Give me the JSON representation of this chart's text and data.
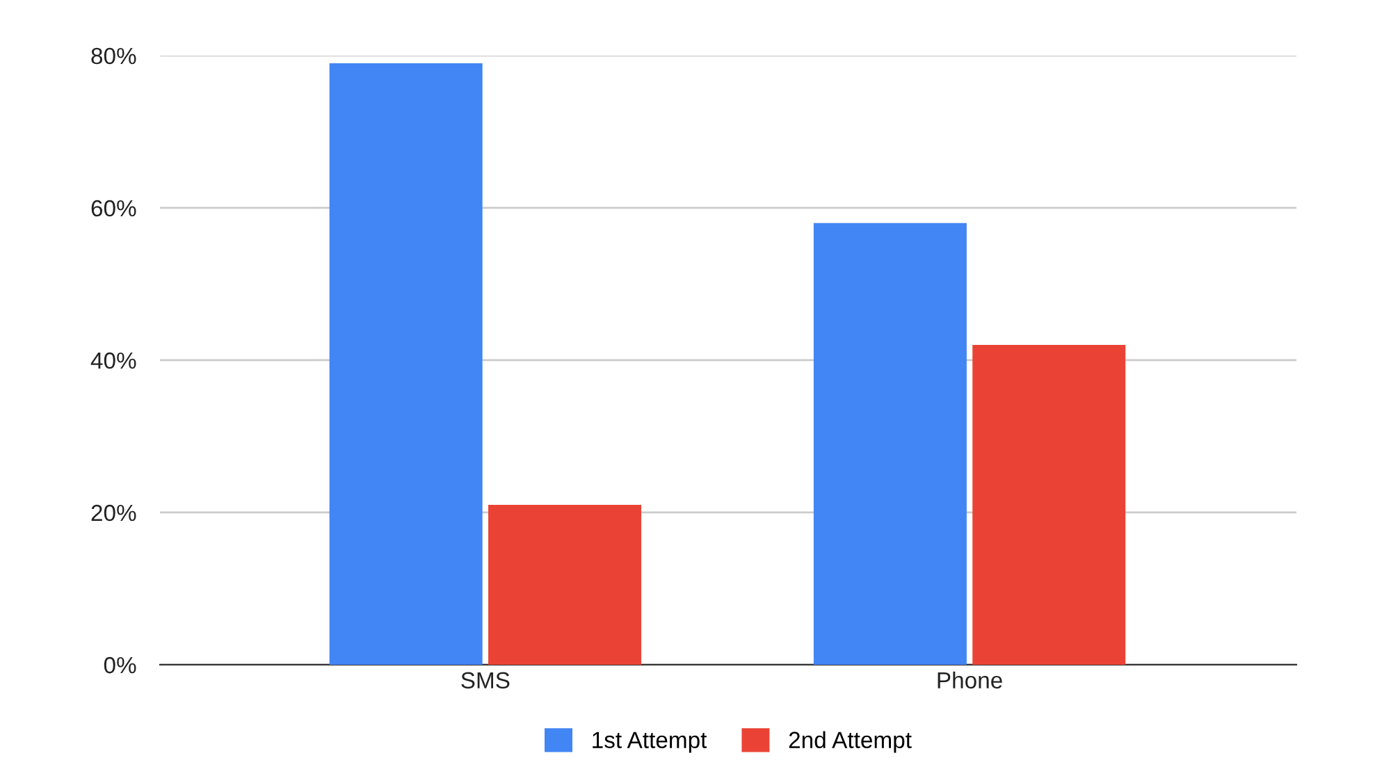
{
  "chart_data": {
    "type": "bar",
    "categories": [
      "SMS",
      "Phone"
    ],
    "series": [
      {
        "name": "1st Attempt",
        "color": "#4285f4",
        "values": [
          79,
          58
        ]
      },
      {
        "name": "2nd Attempt",
        "color": "#ea4335",
        "values": [
          21,
          42
        ]
      }
    ],
    "ylim": [
      0,
      80
    ],
    "yticks": [
      {
        "value": 0,
        "label": "0%"
      },
      {
        "value": 20,
        "label": "20%"
      },
      {
        "value": 40,
        "label": "40%"
      },
      {
        "value": 60,
        "label": "60%"
      },
      {
        "value": 80,
        "label": "80%"
      }
    ],
    "grid": "y",
    "legend": "bottom"
  }
}
